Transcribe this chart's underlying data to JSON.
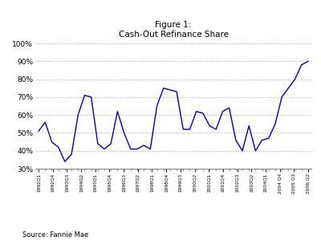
{
  "title_line1": "Figure 1:",
  "title_line2": "Cash-Out Refinance Share",
  "source": "Source: Fannie Mae",
  "line_color": "#0000BB",
  "background_color": "#ffffff",
  "grid_color": "#aaaaaa",
  "ylim": [
    0.3,
    1.0
  ],
  "yticks": [
    0.3,
    0.4,
    0.5,
    0.6,
    0.7,
    0.8,
    0.9,
    1.0
  ],
  "xtick_labels": [
    "1992Q1",
    "1992Q4",
    "1993Q3",
    "1994Q2",
    "1995Q1",
    "1995Q4",
    "1996Q3",
    "1997Q2",
    "1998Q1",
    "1998Q4",
    "1999Q3",
    "2000Q2",
    "2001Q1",
    "2001Q4",
    "2002Q3",
    "2003Q2",
    "2004Q1",
    "2004 Q4",
    "2005 Q3",
    "2006 Q2"
  ],
  "values": [
    0.51,
    0.56,
    0.45,
    0.42,
    0.34,
    0.38,
    0.6,
    0.71,
    0.7,
    0.44,
    0.41,
    0.44,
    0.62,
    0.5,
    0.41,
    0.41,
    0.43,
    0.41,
    0.65,
    0.75,
    0.74,
    0.73,
    0.52,
    0.52,
    0.62,
    0.61,
    0.54,
    0.52,
    0.62,
    0.64,
    0.46,
    0.4,
    0.54,
    0.4,
    0.46,
    0.47,
    0.55,
    0.7,
    0.75,
    0.8,
    0.88,
    0.9
  ]
}
